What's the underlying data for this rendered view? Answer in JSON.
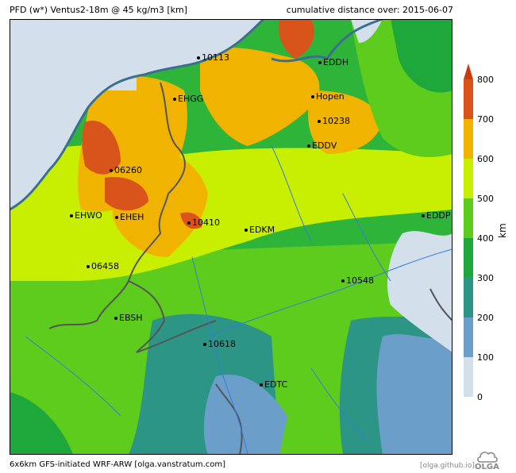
{
  "header": {
    "left_title": "PFD (w*) Ventus2-18m @ 45 kg/m3 [km]",
    "right_title": "cumulative distance over: 2015-06-07"
  },
  "stations": [
    {
      "id": "10113"
    },
    {
      "id": "EDDH"
    },
    {
      "id": "EHGG"
    },
    {
      "id": "Hopen"
    },
    {
      "id": "10238"
    },
    {
      "id": "EDDV"
    },
    {
      "id": "06260"
    },
    {
      "id": "EHWO"
    },
    {
      "id": "EHEH"
    },
    {
      "id": "10410"
    },
    {
      "id": "EDKM"
    },
    {
      "id": "EDDP"
    },
    {
      "id": "06458"
    },
    {
      "id": "10548"
    },
    {
      "id": "EBSH"
    },
    {
      "id": "10618"
    },
    {
      "id": "EDTC"
    }
  ],
  "colorbar": {
    "unit": "km",
    "ticks": [
      "800",
      "700",
      "600",
      "500",
      "400",
      "300",
      "200",
      "100",
      "0"
    ],
    "colors": [
      "#d9541b",
      "#f0b400",
      "#c8ee00",
      "#5dcc1c",
      "#1ea83c",
      "#2c9585",
      "#6b9fc9",
      "#d3e0ec"
    ]
  },
  "footer": {
    "left": "6x6km GFS-initiated WRF-ARW [olga.vanstratum.com]",
    "right": "[olga.github.io]",
    "logo_text": "OLGA"
  }
}
